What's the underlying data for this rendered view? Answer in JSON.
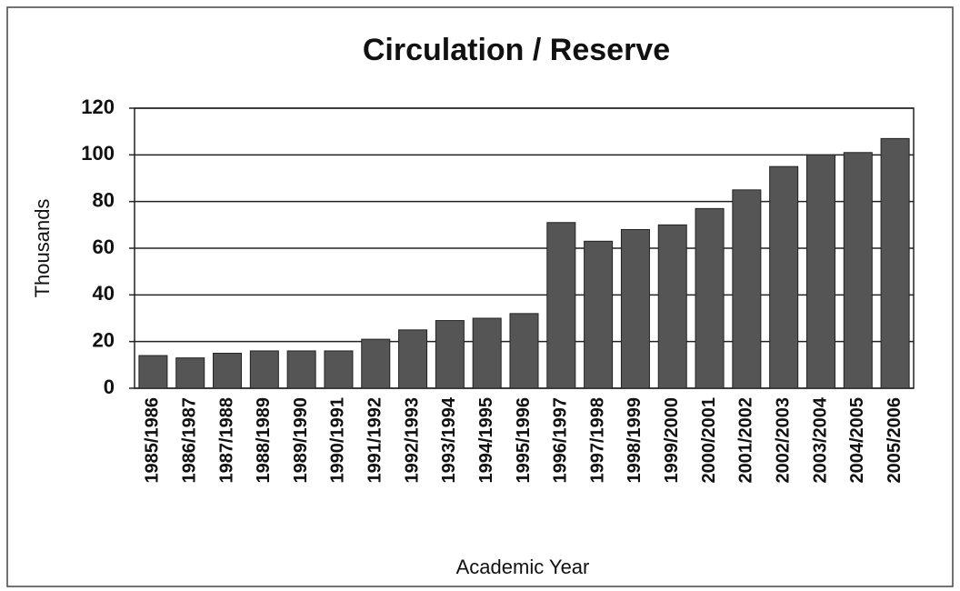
{
  "chart_data": {
    "type": "bar",
    "title": "Circulation / Reserve",
    "x_label": "Academic Year",
    "y_label": "Thousands",
    "categories": [
      "1985/1986",
      "1986/1987",
      "1987/1988",
      "1988/1989",
      "1989/1990",
      "1990/1991",
      "1991/1992",
      "1992/1993",
      "1993/1994",
      "1994/1995",
      "1995/1996",
      "1996/1997",
      "1997/1998",
      "1998/1999",
      "1999/2000",
      "2000/2001",
      "2001/2002",
      "2002/2003",
      "2003/2004",
      "2004/2005",
      "2005/2006"
    ],
    "values": [
      14,
      13,
      15,
      16,
      16,
      16,
      21,
      25,
      29,
      30,
      32,
      71,
      63,
      68,
      70,
      77,
      85,
      95,
      100,
      101,
      107
    ],
    "color": "#555555",
    "ylim": [
      0,
      120
    ],
    "yticks": [
      0,
      20,
      40,
      60,
      80,
      100,
      120
    ],
    "grid": true
  }
}
